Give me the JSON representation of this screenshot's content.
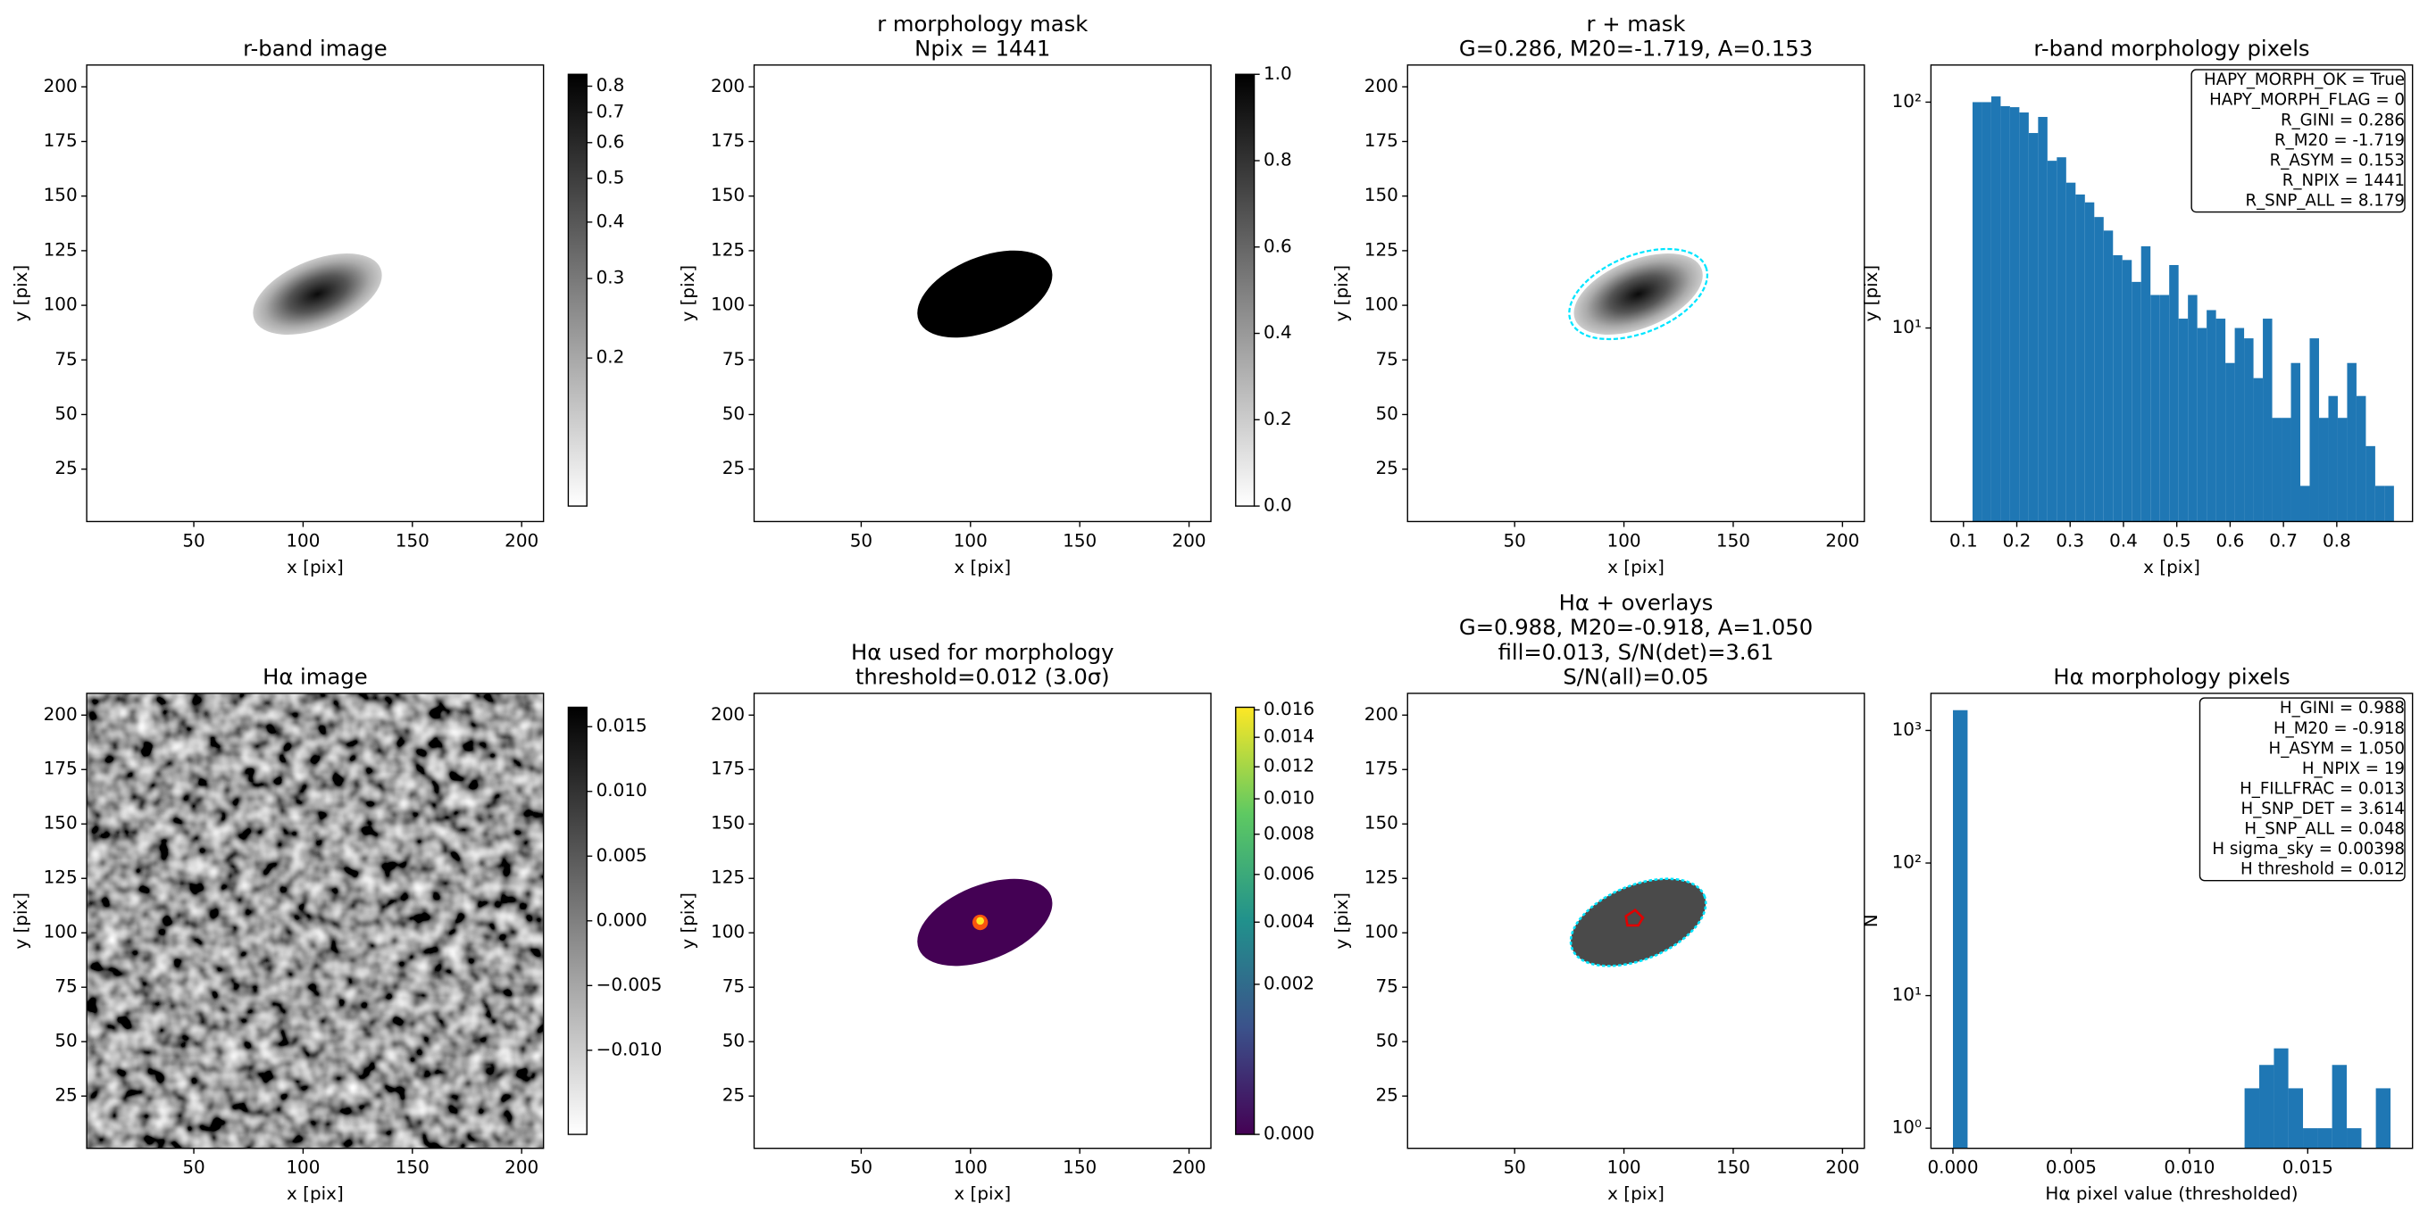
{
  "chart_data": [
    {
      "type": "image",
      "title": [
        "r-band image"
      ],
      "xlabel": "x [pix]",
      "ylabel": "y [pix]",
      "xlim": [
        1,
        210
      ],
      "ylim": [
        1,
        210
      ],
      "xticks": [
        50,
        100,
        150,
        200
      ],
      "yticks": [
        25,
        50,
        75,
        100,
        125,
        150,
        175,
        200
      ],
      "colorbar": {
        "scale": "log",
        "clim": [
          0.094,
          0.85
        ],
        "colors": [
          "#ffffff",
          "#000000"
        ],
        "ticks": [
          0.2,
          0.3,
          0.4,
          0.5,
          0.6,
          0.7,
          0.8
        ]
      }
    },
    {
      "type": "image",
      "title": [
        "r morphology mask",
        "Npix = 1441"
      ],
      "xlabel": "x [pix]",
      "ylabel": "y [pix]",
      "xlim": [
        1,
        210
      ],
      "ylim": [
        1,
        210
      ],
      "xticks": [
        50,
        100,
        150,
        200
      ],
      "yticks": [
        25,
        50,
        75,
        100,
        125,
        150,
        175,
        200
      ],
      "colorbar": {
        "scale": "linear",
        "clim": [
          0,
          1
        ],
        "colors": [
          "#ffffff",
          "#000000"
        ],
        "ticks": [
          {
            "value": 0,
            "label": "0.0"
          },
          0.2,
          0.4,
          0.6,
          0.8,
          {
            "value": 1,
            "label": "1.0"
          }
        ]
      }
    },
    {
      "type": "image",
      "title": [
        "r + mask",
        "G=0.286, M20=-1.719, A=0.153"
      ],
      "xlabel": "x [pix]",
      "ylabel": "y [pix]",
      "xlim": [
        1,
        210
      ],
      "ylim": [
        1,
        210
      ],
      "xticks": [
        50,
        100,
        150,
        200
      ],
      "yticks": [
        25,
        50,
        75,
        100,
        125,
        150,
        175,
        200
      ]
    },
    {
      "type": "histogram",
      "title": [
        "r-band morphology pixels"
      ],
      "xlabel": "x [pix]",
      "ylabel": "y [pix]",
      "color": "#1f77b4",
      "log_y": true,
      "xlim": [
        0.039,
        0.942
      ],
      "ylim": [
        1.39,
        146
      ],
      "xticks": [
        0.1,
        0.2,
        0.3,
        0.4,
        0.5,
        0.6,
        0.7,
        0.8
      ],
      "yticks": [
        {
          "value": 10,
          "label": "10¹"
        },
        {
          "value": 100,
          "label": "10²"
        }
      ],
      "bins": [
        0.117,
        0.13456,
        0.15212,
        0.16968,
        0.18724,
        0.2048,
        0.22236,
        0.23992,
        0.25748,
        0.27504,
        0.2926,
        0.31016,
        0.32772,
        0.34528,
        0.36284,
        0.3804,
        0.39796,
        0.41552,
        0.43308,
        0.45064,
        0.4682,
        0.48576,
        0.50332,
        0.52088,
        0.53844,
        0.556,
        0.57356,
        0.59112,
        0.60868,
        0.62624,
        0.6438,
        0.66136,
        0.67892,
        0.69648,
        0.71404,
        0.7316,
        0.74916,
        0.76672,
        0.78428,
        0.80184,
        0.8194,
        0.83696,
        0.85452,
        0.87208,
        0.88964,
        0.9072
      ],
      "values": [
        100,
        100,
        106,
        96,
        95,
        90,
        73,
        86,
        55,
        57,
        44,
        39,
        36,
        31,
        27,
        21,
        20,
        16,
        23,
        14,
        14,
        19,
        11,
        14,
        10,
        12,
        11,
        7,
        10,
        9,
        6,
        11,
        4,
        4,
        7,
        2,
        9,
        4,
        5,
        4,
        7,
        5,
        3,
        2,
        2
      ],
      "annotation": [
        "HAPY_MORPH_OK = True",
        "HAPY_MORPH_FLAG = 0",
        "R_GINI = 0.286",
        "R_M20 = -1.719",
        "R_ASYM = 0.153",
        "R_NPIX = 1441",
        "R_SNP_ALL = 8.179"
      ]
    },
    {
      "type": "image",
      "title": [
        "Hα image"
      ],
      "xlabel": "x [pix]",
      "ylabel": "y [pix]",
      "xlim": [
        1,
        210
      ],
      "ylim": [
        1,
        210
      ],
      "xticks": [
        50,
        100,
        150,
        200
      ],
      "yticks": [
        25,
        50,
        75,
        100,
        125,
        150,
        175,
        200
      ],
      "colorbar": {
        "scale": "linear",
        "clim": [
          -0.0165,
          0.0165
        ],
        "colors": [
          "#ffffff",
          "#000000"
        ],
        "ticks": [
          {
            "value": -0.01,
            "label": "−0.010"
          },
          {
            "value": -0.005,
            "label": "−0.005"
          },
          {
            "value": 0,
            "label": "0.000"
          },
          0.005,
          {
            "value": 0.01,
            "label": "0.010"
          },
          0.015
        ]
      }
    },
    {
      "type": "image",
      "title": [
        "Hα used for morphology",
        "threshold=0.012 (3.0σ)"
      ],
      "xlabel": "x [pix]",
      "ylabel": "y [pix]",
      "xlim": [
        1,
        210
      ],
      "ylim": [
        1,
        210
      ],
      "xticks": [
        50,
        100,
        150,
        200
      ],
      "yticks": [
        25,
        50,
        75,
        100,
        125,
        150,
        175,
        200
      ],
      "colorbar": {
        "scale": "sqrt",
        "clim": [
          0,
          0.0162
        ],
        "colors": [
          "#440154",
          "#3b528b",
          "#21918c",
          "#5ec962",
          "#fde725"
        ],
        "ticks": [
          {
            "value": 0,
            "label": "0.000"
          },
          0.002,
          0.004,
          0.006,
          0.008,
          {
            "value": 0.01,
            "label": "0.010"
          },
          0.012,
          0.014,
          0.016
        ]
      }
    },
    {
      "type": "image",
      "title": [
        "Hα + overlays",
        "G=0.988, M20=-0.918, A=1.050",
        "fill=0.013, S/N(det)=3.61",
        "S/N(all)=0.05"
      ],
      "xlabel": "x [pix]",
      "ylabel": "y [pix]",
      "xlim": [
        1,
        210
      ],
      "ylim": [
        1,
        210
      ],
      "xticks": [
        50,
        100,
        150,
        200
      ],
      "yticks": [
        25,
        50,
        75,
        100,
        125,
        150,
        175,
        200
      ]
    },
    {
      "type": "histogram",
      "title": [
        "Hα morphology pixels"
      ],
      "xlabel": "Hα pixel value (thresholded)",
      "ylabel": "N",
      "color": "#1f77b4",
      "log_y": true,
      "xlim": [
        -0.00093,
        0.01943
      ],
      "ylim": [
        0.705,
        1905
      ],
      "xticks": [
        {
          "value": 0,
          "label": "0.000"
        },
        0.005,
        {
          "value": 0.01,
          "label": "0.010"
        },
        0.015
      ],
      "yticks": [
        {
          "value": 1,
          "label": "10⁰"
        },
        {
          "value": 10,
          "label": "10¹"
        },
        {
          "value": 100,
          "label": "10²"
        },
        {
          "value": 1000,
          "label": "10³"
        }
      ],
      "bins": [
        0,
        0.00062,
        0.00123,
        0.00185,
        0.00247,
        0.00308,
        0.0037,
        0.00432,
        0.00493,
        0.00555,
        0.00617,
        0.00678,
        0.0074,
        0.00802,
        0.00863,
        0.00925,
        0.00987,
        0.01048,
        0.0111,
        0.01172,
        0.01233,
        0.01295,
        0.01357,
        0.01418,
        0.0148,
        0.01542,
        0.01603,
        0.01665,
        0.01727,
        0.01788,
        0.0185
      ],
      "values": [
        1422,
        0,
        0,
        0,
        0,
        0,
        0,
        0,
        0,
        0,
        0,
        0,
        0,
        0,
        0,
        0,
        0,
        0,
        0,
        0,
        2,
        3,
        4,
        2,
        1,
        1,
        3,
        1,
        0,
        2
      ],
      "annotation": [
        "H_GINI = 0.988",
        "H_M20 = -0.918",
        "H_ASYM = 1.050",
        "H_NPIX = 19",
        "H_FILLFRAC = 0.013",
        "H_SNP_DET = 3.614",
        "H_SNP_ALL = 0.048",
        "H sigma_sky = 0.00398",
        "H threshold = 0.012"
      ]
    }
  ]
}
